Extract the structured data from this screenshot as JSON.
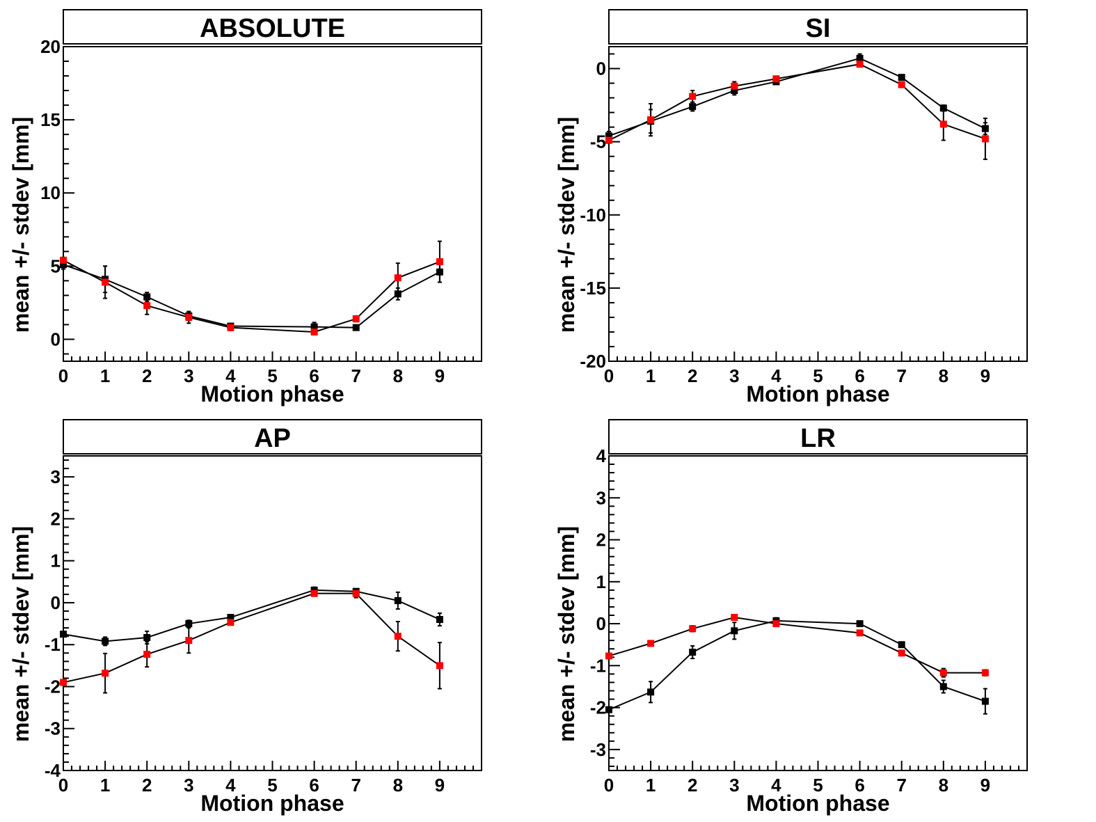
{
  "colors": {
    "series_black": "#000000",
    "series_red": "#ff0000",
    "frame": "#000000",
    "background": "#ffffff"
  },
  "chart_data": [
    {
      "type": "line",
      "title": "ABSOLUTE",
      "xlabel": "Motion phase",
      "ylabel": "mean +/- stdev [mm]",
      "xlim": [
        0,
        10
      ],
      "ylim": [
        -1.5,
        20
      ],
      "xticks": [
        0,
        1,
        2,
        3,
        4,
        5,
        6,
        7,
        8,
        9
      ],
      "yticks": [
        0,
        5,
        10,
        15,
        20
      ],
      "grid": false,
      "series": [
        {
          "color": "#000000",
          "x": [
            0,
            1,
            2,
            3,
            4,
            6,
            7,
            8,
            9
          ],
          "y": [
            5.1,
            4.1,
            2.9,
            1.6,
            0.9,
            0.85,
            0.8,
            3.1,
            4.6
          ],
          "err": [
            0.3,
            0.9,
            0.3,
            0.3,
            0.15,
            0.3,
            0.1,
            0.4,
            0.7
          ]
        },
        {
          "color": "#ff0000",
          "x": [
            0,
            1,
            2,
            3,
            4,
            6,
            7,
            8,
            9
          ],
          "y": [
            5.4,
            3.9,
            2.3,
            1.5,
            0.8,
            0.5,
            1.4,
            4.2,
            5.3
          ],
          "err": [
            0.2,
            1.1,
            0.6,
            0.4,
            0.2,
            0.15,
            0.2,
            1.0,
            1.4
          ]
        }
      ]
    },
    {
      "type": "line",
      "title": "SI",
      "xlabel": "Motion phase",
      "ylabel": "mean +/- stdev [mm]",
      "xlim": [
        0,
        10
      ],
      "ylim": [
        -20,
        1.5
      ],
      "xticks": [
        0,
        1,
        2,
        3,
        4,
        5,
        6,
        7,
        8,
        9
      ],
      "yticks": [
        -20,
        -15,
        -10,
        -5,
        0
      ],
      "grid": false,
      "series": [
        {
          "color": "#000000",
          "x": [
            0,
            1,
            2,
            3,
            4,
            6,
            7,
            8,
            9
          ],
          "y": [
            -4.6,
            -3.6,
            -2.6,
            -1.5,
            -0.9,
            0.7,
            -0.6,
            -2.7,
            -4.1
          ],
          "err": [
            0.3,
            0.8,
            0.3,
            0.3,
            0.1,
            0.3,
            0.1,
            0.2,
            0.4
          ]
        },
        {
          "color": "#ff0000",
          "x": [
            0,
            1,
            2,
            3,
            4,
            6,
            7,
            8,
            9
          ],
          "y": [
            -4.9,
            -3.5,
            -1.9,
            -1.2,
            -0.7,
            0.3,
            -1.1,
            -3.8,
            -4.8
          ],
          "err": [
            0.2,
            1.1,
            0.4,
            0.3,
            0.1,
            0.1,
            0.1,
            1.1,
            1.4
          ]
        }
      ]
    },
    {
      "type": "line",
      "title": "AP",
      "xlabel": "Motion phase",
      "ylabel": "mean +/- stdev [mm]",
      "xlim": [
        0,
        10
      ],
      "ylim": [
        -4,
        3.5
      ],
      "xticks": [
        0,
        1,
        2,
        3,
        4,
        5,
        6,
        7,
        8,
        9
      ],
      "yticks": [
        -4,
        -3,
        -2,
        -1,
        0,
        1,
        2,
        3
      ],
      "grid": false,
      "series": [
        {
          "color": "#000000",
          "x": [
            0,
            1,
            2,
            3,
            4,
            6,
            7,
            8,
            9
          ],
          "y": [
            -0.75,
            -0.92,
            -0.83,
            -0.5,
            -0.35,
            0.3,
            0.27,
            0.05,
            -0.4
          ],
          "err": [
            0.05,
            0.1,
            0.15,
            0.08,
            0.05,
            0.07,
            0.06,
            0.2,
            0.15
          ]
        },
        {
          "color": "#ff0000",
          "x": [
            0,
            1,
            2,
            3,
            4,
            6,
            7,
            8,
            9
          ],
          "y": [
            -1.9,
            -1.68,
            -1.23,
            -0.9,
            -0.47,
            0.22,
            0.22,
            -0.8,
            -1.5
          ],
          "err": [
            0.05,
            0.47,
            0.3,
            0.3,
            0.05,
            0.05,
            0.1,
            0.35,
            0.55
          ]
        }
      ]
    },
    {
      "type": "line",
      "title": "LR",
      "xlabel": "Motion phase",
      "ylabel": "mean +/- stdev [mm]",
      "xlim": [
        0,
        10
      ],
      "ylim": [
        -3.5,
        4
      ],
      "xticks": [
        0,
        1,
        2,
        3,
        4,
        5,
        6,
        7,
        8,
        9
      ],
      "yticks": [
        -3,
        -2,
        -1,
        0,
        1,
        2,
        3,
        4
      ],
      "grid": false,
      "series": [
        {
          "color": "#000000",
          "x": [
            0,
            1,
            2,
            3,
            4,
            6,
            7,
            8,
            9
          ],
          "y": [
            -2.05,
            -1.63,
            -0.68,
            -0.17,
            0.07,
            0.0,
            -0.5,
            -1.5,
            -1.85
          ],
          "err": [
            0.05,
            0.25,
            0.15,
            0.2,
            0.07,
            0.04,
            0.05,
            0.15,
            0.3
          ]
        },
        {
          "color": "#ff0000",
          "x": [
            0,
            1,
            2,
            3,
            4,
            6,
            7,
            8,
            9
          ],
          "y": [
            -0.77,
            -0.47,
            -0.12,
            0.15,
            0.0,
            -0.22,
            -0.7,
            -1.17,
            -1.17
          ],
          "err": [
            0.03,
            0.04,
            0.07,
            0.03,
            0.03,
            0.04,
            0.04,
            0.1,
            0.07
          ]
        }
      ]
    }
  ]
}
